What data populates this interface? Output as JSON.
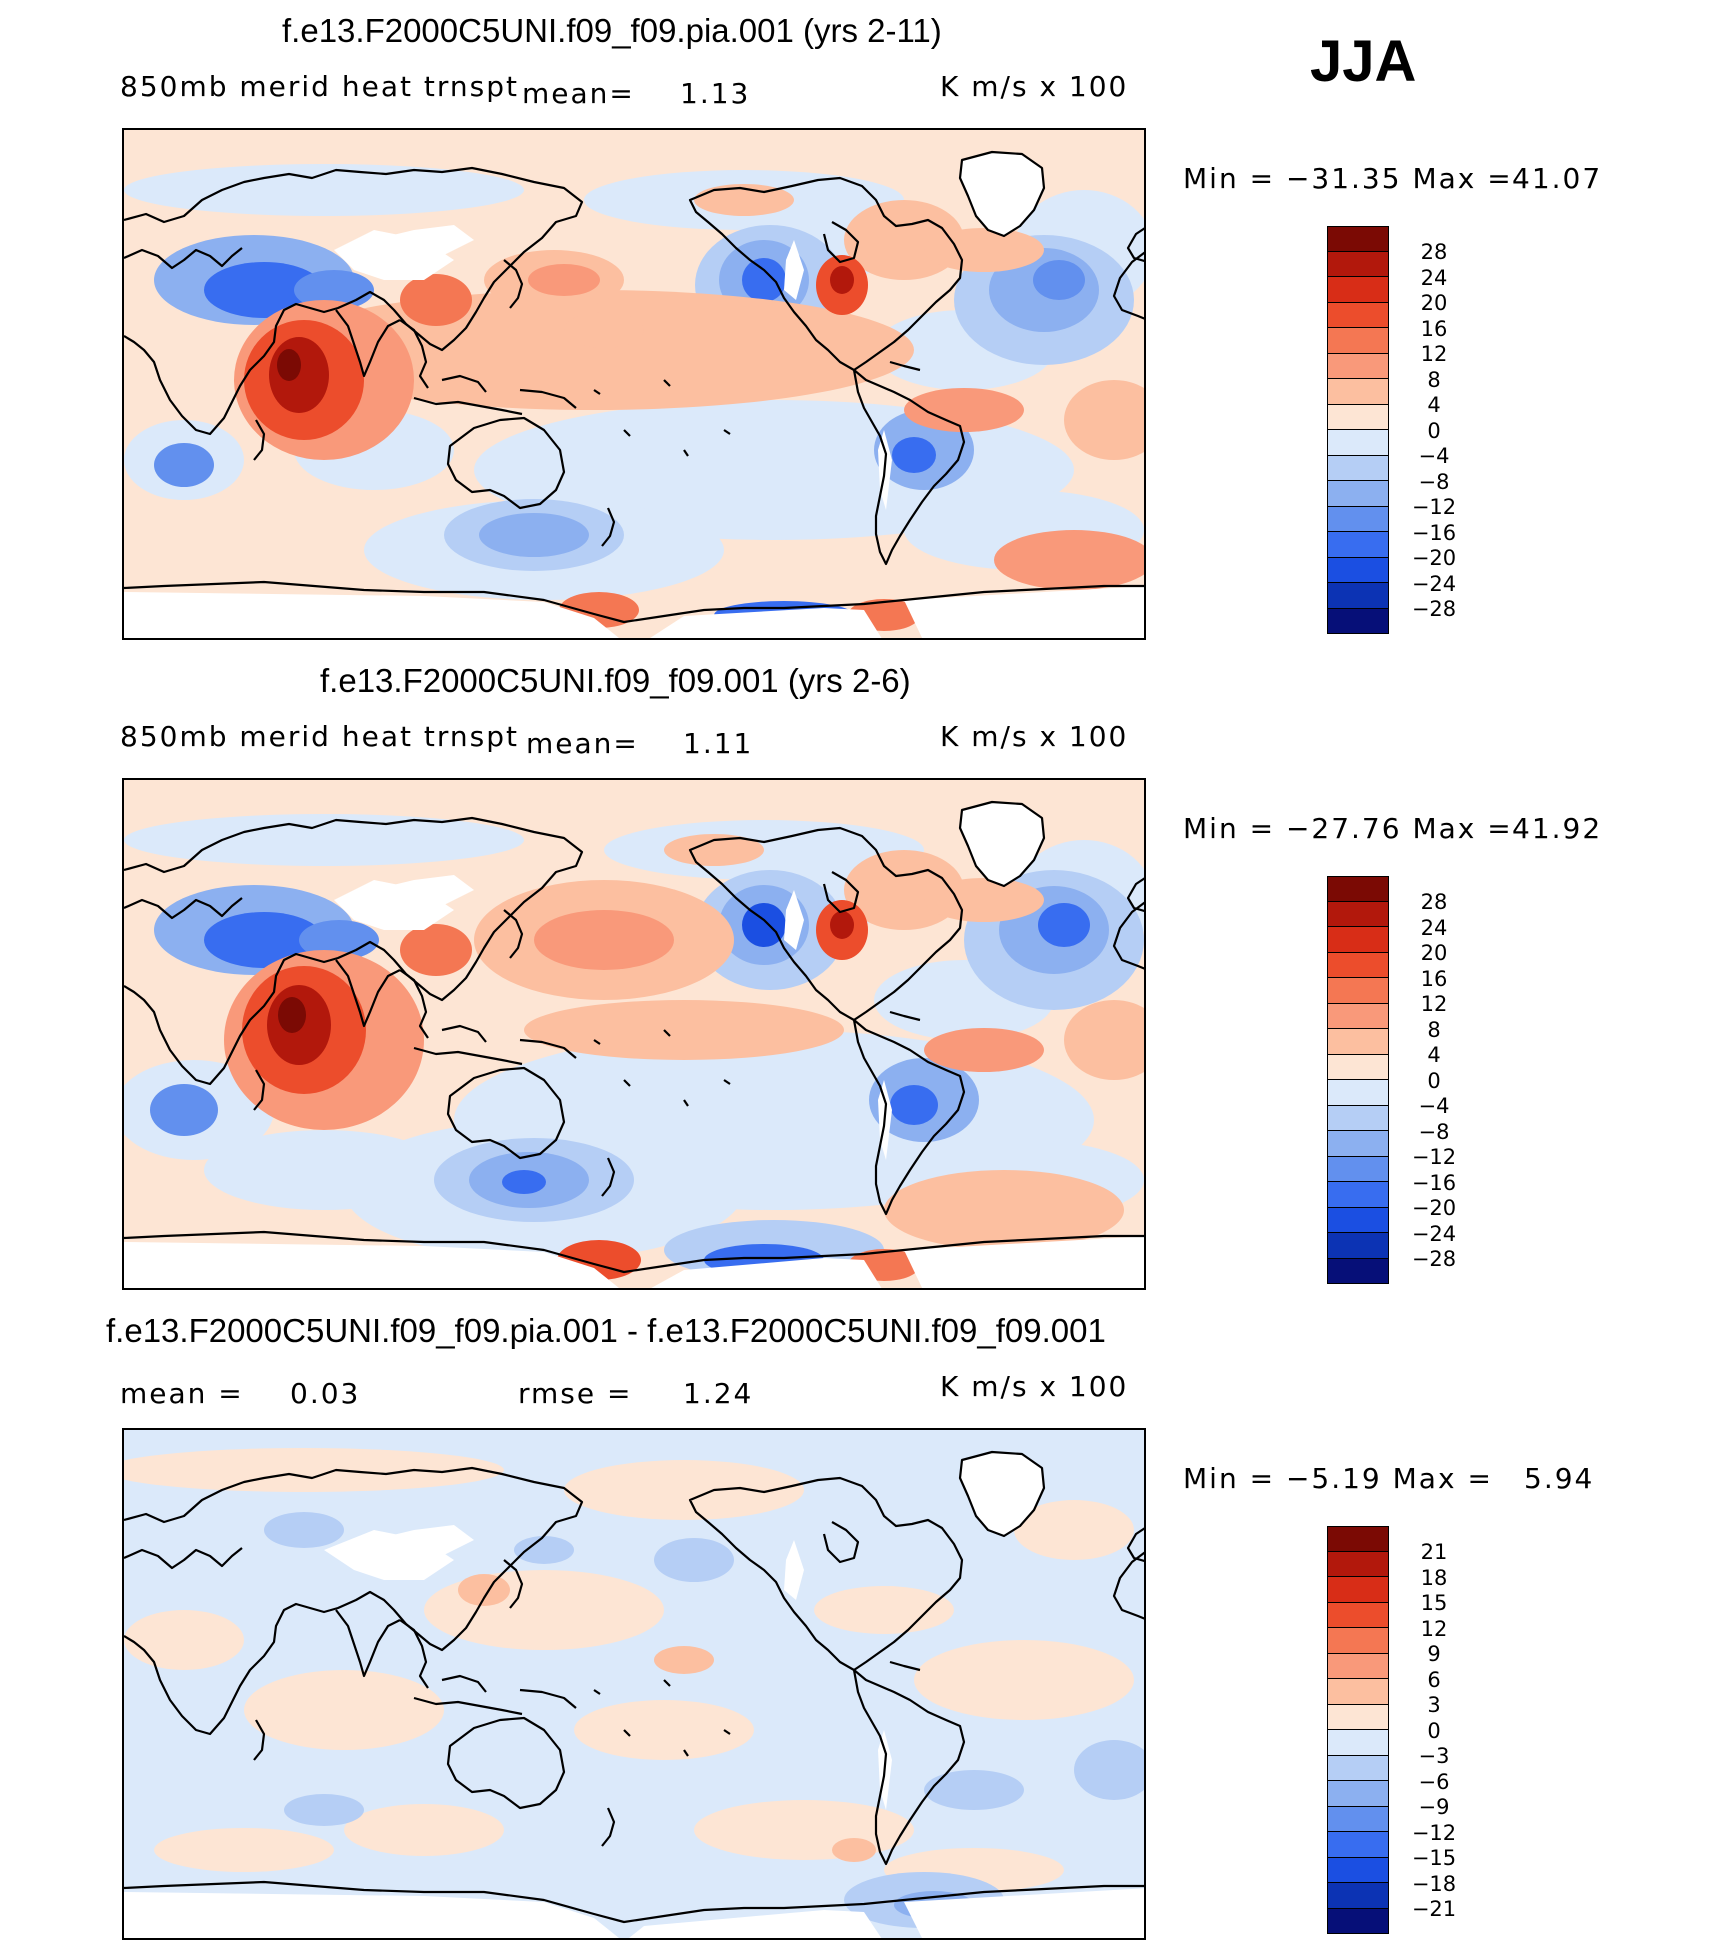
{
  "season": "JJA",
  "palette": {
    "pos": [
      "#fde5d4",
      "#fcbfa0",
      "#f9997a",
      "#f47753",
      "#ec4d2c",
      "#d82d17",
      "#b2180c",
      "#7b0a04"
    ],
    "neg": [
      "#dbe9fa",
      "#b5cef5",
      "#8cb0f0",
      "#6290ee",
      "#386df0",
      "#1b4fe2",
      "#0c33b4",
      "#060f78"
    ],
    "land_missing": "#ffffff",
    "coast": "#000000"
  },
  "panels": [
    {
      "title": "f.e13.F2000C5UNI.f09_f09.pia.001 (yrs 2-11)",
      "variable": "850mb merid heat trnspt",
      "mean_label": "mean=",
      "mean_value": "1.13",
      "units": "K m/s x 100",
      "minmax_label": "Min = −31.35 Max =",
      "max_value": "41.07",
      "levels": [
        "28",
        "24",
        "20",
        "16",
        "12",
        "8",
        "4",
        "0",
        "−4",
        "−8",
        "−12",
        "−16",
        "−20",
        "−24",
        "−28"
      ]
    },
    {
      "title": "f.e13.F2000C5UNI.f09_f09.001 (yrs 2-6)",
      "variable": "850mb merid heat trnspt",
      "mean_label": "mean=",
      "mean_value": "1.11",
      "units": "K m/s x 100",
      "minmax_label": "Min = −27.76 Max =",
      "max_value": "41.92",
      "levels": [
        "28",
        "24",
        "20",
        "16",
        "12",
        "8",
        "4",
        "0",
        "−4",
        "−8",
        "−12",
        "−16",
        "−20",
        "−24",
        "−28"
      ]
    },
    {
      "title": "f.e13.F2000C5UNI.f09_f09.pia.001 - f.e13.F2000C5UNI.f09_f09.001",
      "mean_label": "mean =",
      "mean_value": "0.03",
      "rmse_label": "rmse =",
      "rmse_value": "1.24",
      "units": "K m/s x 100",
      "minmax_label": "Min = −5.19 Max =",
      "max_value": "5.94",
      "levels": [
        "21",
        "18",
        "15",
        "12",
        "9",
        "6",
        "3",
        "0",
        "−3",
        "−6",
        "−9",
        "−12",
        "−15",
        "−18",
        "−21"
      ]
    }
  ]
}
